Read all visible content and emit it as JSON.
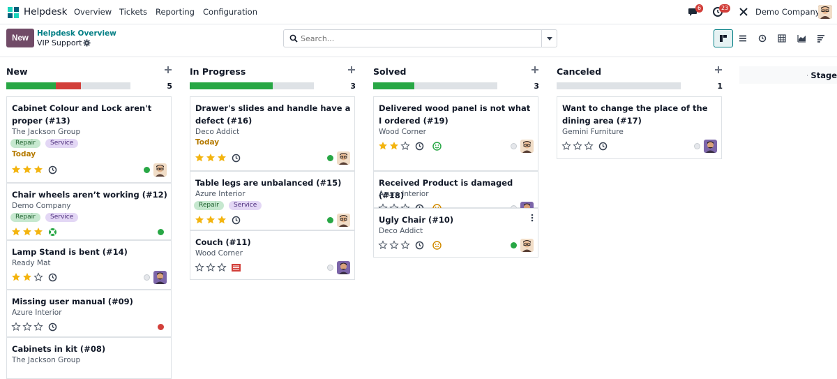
{
  "navbar": {
    "app_name": "Helpdesk",
    "menu": [
      "Overview",
      "Tickets",
      "Reporting",
      "Configuration"
    ],
    "chat_badge": "6",
    "activity_badge": "23",
    "company": "Demo Company"
  },
  "control": {
    "new_label": "New",
    "breadcrumb_parent": "Helpdesk Overview",
    "breadcrumb_current": "VIP Support",
    "search_placeholder": "Search...",
    "views": [
      "kanban",
      "list",
      "activity",
      "pivot",
      "graph",
      "cohort"
    ],
    "active_view": "kanban"
  },
  "columns": [
    {
      "title": "New",
      "count": "5",
      "progress": [
        {
          "color": "#28a745",
          "fraction": 0.4
        },
        {
          "color": "#d23f3a",
          "fraction": 0.2
        }
      ],
      "cards": [
        {
          "title": "Cabinet Colour and Lock aren't proper (#13)",
          "company": "The Jackson Group",
          "tags": [
            "Repair",
            "Service"
          ],
          "deadline": "Today",
          "stars": 3,
          "icon": "clock-icon",
          "status": "green",
          "avatar": "a"
        },
        {
          "title": "Chair wheels aren’t working (#12)",
          "company": "Demo Company",
          "tags": [
            "Repair",
            "Service"
          ],
          "deadline": "",
          "stars": 3,
          "icon": "lifebuoy-icon",
          "status": "green",
          "avatar": ""
        },
        {
          "title": "Lamp Stand is bent (#14)",
          "company": "Ready Mat",
          "tags": [],
          "deadline": "",
          "stars": 2,
          "icon": "clock-icon",
          "status": "grey",
          "avatar": "b"
        },
        {
          "title": "Missing user manual (#09)",
          "company": "Azure Interior",
          "tags": [],
          "deadline": "",
          "stars": 0,
          "icon": "clock-icon",
          "status": "red",
          "avatar": ""
        },
        {
          "title": "Cabinets in kit (#08)",
          "company": "The Jackson Group",
          "tags": [],
          "deadline": "",
          "stars": 0,
          "icon": "",
          "status": "",
          "avatar": ""
        }
      ]
    },
    {
      "title": "In Progress",
      "count": "3",
      "progress": [
        {
          "color": "#28a745",
          "fraction": 0.67
        }
      ],
      "cards": [
        {
          "title": "Drawer's slides and handle have a defect (#16)",
          "company": "Deco Addict",
          "tags": [],
          "deadline": "Today",
          "stars": 3,
          "icon": "clock-icon",
          "status": "green",
          "avatar": "a"
        },
        {
          "title": "Table legs are unbalanced (#15)",
          "company": "Azure Interior",
          "tags": [
            "Repair",
            "Service"
          ],
          "deadline": "",
          "stars": 3,
          "icon": "clock-icon",
          "status": "green",
          "avatar": "a"
        },
        {
          "title": "Couch (#11)",
          "company": "Wood Corner",
          "tags": [],
          "deadline": "",
          "stars": 0,
          "icon": "flag-icon",
          "status": "grey",
          "avatar": "b"
        }
      ]
    },
    {
      "title": "Solved",
      "count": "3",
      "progress": [
        {
          "color": "#28a745",
          "fraction": 0.33
        }
      ],
      "cards": [
        {
          "title": "Delivered wood panel is not what I ordered (#19)",
          "company": "Wood Corner",
          "tags": [],
          "deadline": "",
          "stars": 2,
          "icon": "clock-icon",
          "rating": "happy",
          "status": "grey",
          "avatar": "a"
        },
        {
          "title": "Received Product is damaged (#18)",
          "company": "Azure Interior",
          "tags": [],
          "deadline": "",
          "stars": 0,
          "icon": "clock-icon",
          "rating": "neutral",
          "status": "grey",
          "avatar": "b"
        },
        {
          "title": "Ugly Chair (#10)",
          "company": "Deco Addict",
          "tags": [],
          "deadline": "",
          "stars": 0,
          "icon": "clock-icon",
          "rating": "neutral",
          "status": "green",
          "avatar": "a"
        }
      ]
    },
    {
      "title": "Canceled",
      "count": "1",
      "progress": [],
      "cards": [
        {
          "title": "Want to change the place of the dining area (#17)",
          "company": "Gemini Furniture",
          "tags": [],
          "deadline": "",
          "stars": 0,
          "icon": "clock-icon",
          "status": "grey",
          "avatar": "b"
        }
      ]
    }
  ],
  "add_stage_label": "Stage"
}
